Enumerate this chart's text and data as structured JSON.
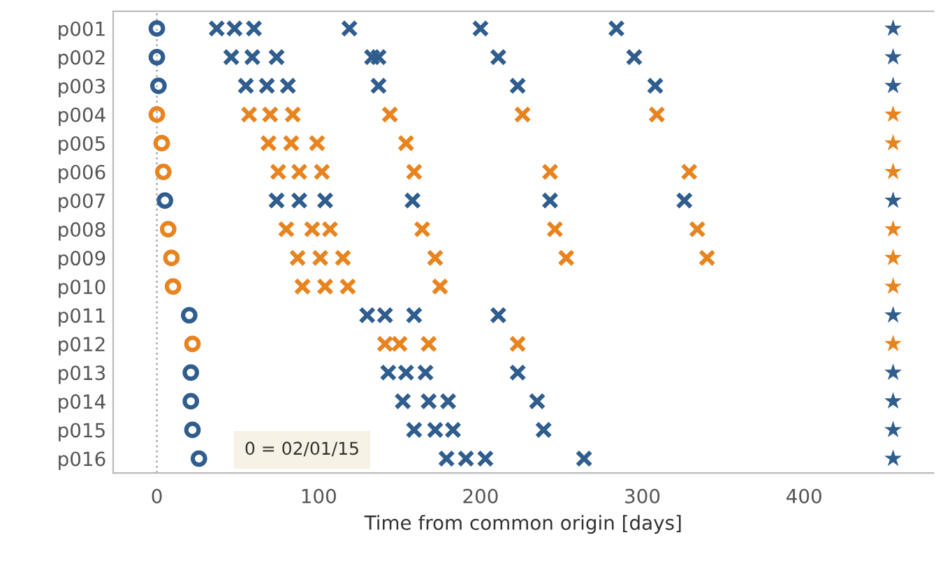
{
  "chart_data": {
    "type": "scatter",
    "orientation": "horizontal",
    "xlabel": "Time from common origin [days]",
    "categories": [
      "p001",
      "p002",
      "p003",
      "p004",
      "p005",
      "p006",
      "p007",
      "p008",
      "p009",
      "p010",
      "p011",
      "p012",
      "p013",
      "p014",
      "p015",
      "p016"
    ],
    "xlim": [
      -27,
      480
    ],
    "xticks": [
      0,
      100,
      200,
      300,
      400
    ],
    "grid": false,
    "ref_lines": [
      {
        "axis": "x",
        "value": 0,
        "line_style": "dotted",
        "color": "#b0b0b0"
      }
    ],
    "annotations": [
      "0 = 02/01/15"
    ],
    "series": [
      {
        "marker": "circle",
        "values": [
          0,
          0,
          1,
          0,
          3,
          4,
          5,
          7,
          9,
          10,
          20,
          22,
          21,
          21,
          22,
          26
        ],
        "colors": [
          "#2f5d8e",
          "#2f5d8e",
          "#2f5d8e",
          "#e8841f",
          "#e8841f",
          "#e8841f",
          "#2f5d8e",
          "#e8841f",
          "#e8841f",
          "#e8841f",
          "#2f5d8e",
          "#e8841f",
          "#2f5d8e",
          "#2f5d8e",
          "#2f5d8e",
          "#2f5d8e"
        ]
      },
      {
        "marker": "cross",
        "values": [
          37,
          46,
          55,
          57,
          69,
          75,
          74,
          80,
          87,
          90,
          130,
          141,
          143,
          152,
          159,
          179
        ],
        "colors": [
          "#2f5d8e",
          "#2f5d8e",
          "#2f5d8e",
          "#e8841f",
          "#e8841f",
          "#e8841f",
          "#2f5d8e",
          "#e8841f",
          "#e8841f",
          "#e8841f",
          "#2f5d8e",
          "#e8841f",
          "#2f5d8e",
          "#2f5d8e",
          "#2f5d8e",
          "#2f5d8e"
        ]
      },
      {
        "marker": "cross",
        "values": [
          48,
          59,
          68,
          70,
          83,
          88,
          88,
          96,
          101,
          104,
          141,
          150,
          154,
          168,
          172,
          191
        ],
        "colors": [
          "#2f5d8e",
          "#2f5d8e",
          "#2f5d8e",
          "#e8841f",
          "#e8841f",
          "#e8841f",
          "#2f5d8e",
          "#e8841f",
          "#e8841f",
          "#e8841f",
          "#2f5d8e",
          "#e8841f",
          "#2f5d8e",
          "#2f5d8e",
          "#2f5d8e",
          "#2f5d8e"
        ]
      },
      {
        "marker": "cross",
        "values": [
          60,
          74,
          81,
          84,
          99,
          102,
          104,
          107,
          115,
          118,
          159,
          168,
          166,
          180,
          183,
          203
        ],
        "colors": [
          "#2f5d8e",
          "#2f5d8e",
          "#2f5d8e",
          "#e8841f",
          "#e8841f",
          "#e8841f",
          "#2f5d8e",
          "#e8841f",
          "#e8841f",
          "#e8841f",
          "#2f5d8e",
          "#e8841f",
          "#2f5d8e",
          "#2f5d8e",
          "#2f5d8e",
          "#2f5d8e"
        ]
      },
      {
        "marker": "cross",
        "values": [
          119,
          133,
          137,
          144,
          154,
          159,
          158,
          164,
          172,
          175,
          211,
          223,
          223,
          235,
          239,
          264
        ],
        "colors": [
          "#2f5d8e",
          "#2f5d8e",
          "#2f5d8e",
          "#e8841f",
          "#e8841f",
          "#e8841f",
          "#2f5d8e",
          "#e8841f",
          "#e8841f",
          "#e8841f",
          "#2f5d8e",
          "#e8841f",
          "#2f5d8e",
          "#2f5d8e",
          "#2f5d8e",
          "#2f5d8e"
        ]
      },
      {
        "marker": "cross",
        "values": [
          null,
          137,
          null,
          null,
          null,
          null,
          null,
          null,
          null,
          null,
          null,
          null,
          null,
          null,
          null,
          null
        ],
        "colors": [
          "#2f5d8e",
          "#2f5d8e",
          "#2f5d8e",
          "#e8841f",
          "#e8841f",
          "#e8841f",
          "#2f5d8e",
          "#e8841f",
          "#e8841f",
          "#e8841f",
          "#2f5d8e",
          "#e8841f",
          "#2f5d8e",
          "#2f5d8e",
          "#2f5d8e",
          "#2f5d8e"
        ]
      },
      {
        "marker": "cross",
        "values": [
          200,
          211,
          223,
          226,
          null,
          243,
          243,
          246,
          253,
          null,
          null,
          null,
          null,
          null,
          null,
          null
        ],
        "colors": [
          "#2f5d8e",
          "#2f5d8e",
          "#2f5d8e",
          "#e8841f",
          "#e8841f",
          "#e8841f",
          "#2f5d8e",
          "#e8841f",
          "#e8841f",
          "#e8841f",
          "#2f5d8e",
          "#e8841f",
          "#2f5d8e",
          "#2f5d8e",
          "#2f5d8e",
          "#2f5d8e"
        ]
      },
      {
        "marker": "cross",
        "values": [
          284,
          295,
          308,
          309,
          null,
          329,
          326,
          334,
          340,
          null,
          null,
          null,
          null,
          null,
          null,
          null
        ],
        "colors": [
          "#2f5d8e",
          "#2f5d8e",
          "#2f5d8e",
          "#e8841f",
          "#e8841f",
          "#e8841f",
          "#2f5d8e",
          "#e8841f",
          "#e8841f",
          "#e8841f",
          "#2f5d8e",
          "#e8841f",
          "#2f5d8e",
          "#2f5d8e",
          "#2f5d8e",
          "#2f5d8e"
        ]
      },
      {
        "marker": "star",
        "values": [
          455,
          455,
          455,
          455,
          455,
          455,
          455,
          455,
          455,
          455,
          455,
          455,
          455,
          455,
          455,
          455
        ],
        "colors": [
          "#2f5d8e",
          "#2f5d8e",
          "#2f5d8e",
          "#e8841f",
          "#e8841f",
          "#e8841f",
          "#2f5d8e",
          "#e8841f",
          "#e8841f",
          "#e8841f",
          "#2f5d8e",
          "#e8841f",
          "#2f5d8e",
          "#2f5d8e",
          "#2f5d8e",
          "#2f5d8e"
        ]
      }
    ]
  }
}
